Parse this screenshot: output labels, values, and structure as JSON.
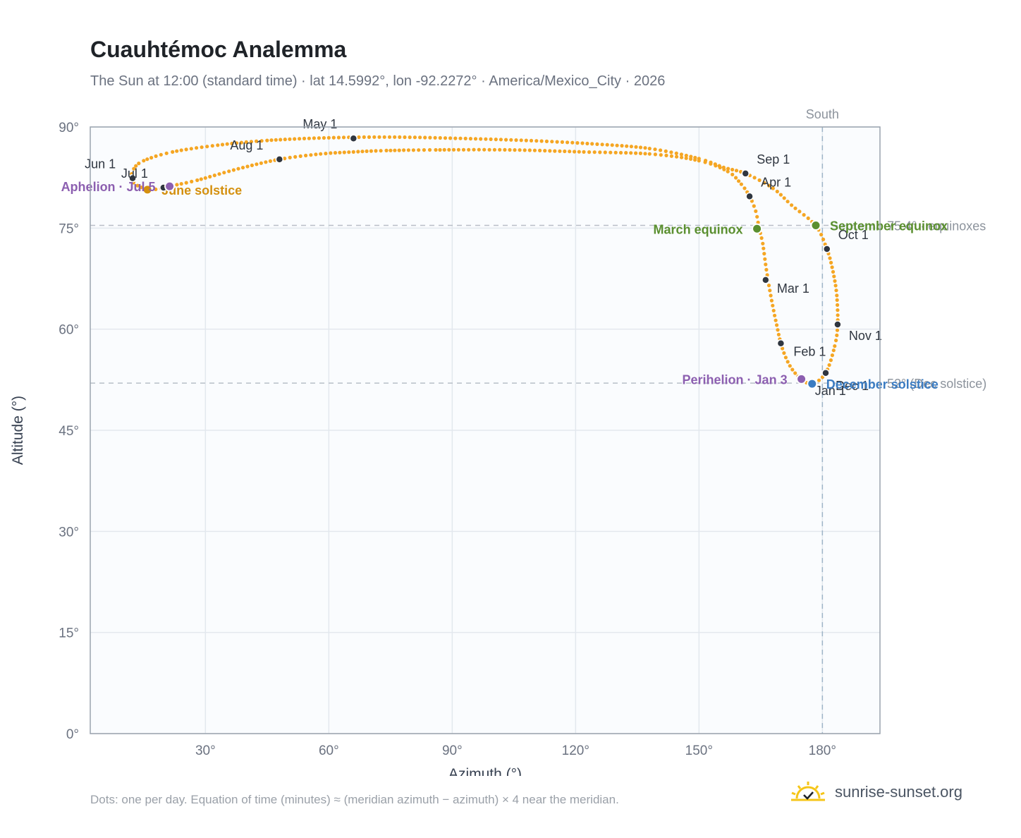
{
  "page": {
    "title": "Cuauhtémoc Analemma",
    "subtitle": "The Sun at 12:00 (standard time) · lat 14.5992°, lon -92.2272° · America/Mexico_City · 2026",
    "footnote": "Dots: one per day. Equation of time (minutes) ≈ (meridian azimuth − azimuth) × 4 near the meridian.",
    "brand": "sunrise-sunset.org"
  },
  "chart_data": {
    "type": "scatter",
    "xlabel": "Azimuth (°)",
    "ylabel": "Altitude (°)",
    "xlim": [
      2,
      194
    ],
    "ylim": [
      0,
      90
    ],
    "xticks": [
      30,
      60,
      90,
      120,
      150,
      180
    ],
    "xtick_labels": [
      "30°",
      "60°",
      "90°",
      "120°",
      "150°",
      "180°"
    ],
    "yticks": [
      0,
      15,
      30,
      45,
      60,
      75,
      90
    ],
    "ytick_labels": [
      "0°",
      "15°",
      "30°",
      "45°",
      "60°",
      "75°",
      "90°"
    ],
    "grid": true,
    "colors": {
      "track": "#f5a623",
      "month": "#2f3640",
      "equinox": "#5a8f2f",
      "december_solstice": "#3b7cc2",
      "june_solstice": "#d4900f",
      "apsis": "#8c5fb0",
      "reference": "#b8bec7",
      "south": "#9fb5c8"
    },
    "track_label": "Analemma",
    "track_points": [
      [
        177.5,
        51.9
      ],
      [
        174.9,
        52.6
      ],
      [
        172.7,
        54.0
      ],
      [
        171.1,
        55.8
      ],
      [
        169.9,
        57.9
      ],
      [
        168.9,
        60.6
      ],
      [
        167.9,
        63.5
      ],
      [
        167.0,
        66.5
      ],
      [
        166.2,
        69.6
      ],
      [
        165.5,
        72.7
      ],
      [
        164.6,
        75.0
      ],
      [
        163.8,
        77.5
      ],
      [
        162.3,
        79.7
      ],
      [
        160.3,
        81.5
      ],
      [
        157.0,
        83.4
      ],
      [
        150.0,
        85.0
      ],
      [
        138.0,
        86.0
      ],
      [
        122.0,
        86.3
      ],
      [
        104.0,
        86.6
      ],
      [
        86.0,
        86.6
      ],
      [
        74.0,
        86.5
      ],
      [
        66.0,
        86.3
      ],
      [
        58.0,
        86.0
      ],
      [
        48.0,
        85.2
      ],
      [
        38.0,
        83.8
      ],
      [
        28.0,
        82.1
      ],
      [
        21.3,
        81.2
      ],
      [
        19.2,
        80.9
      ],
      [
        16.5,
        80.7
      ],
      [
        13.5,
        81.3
      ],
      [
        12.0,
        82.3
      ],
      [
        12.6,
        83.8
      ],
      [
        15.0,
        85.0
      ],
      [
        22.0,
        86.3
      ],
      [
        33.0,
        87.3
      ],
      [
        45.0,
        88.0
      ],
      [
        60.0,
        88.4
      ],
      [
        76.0,
        88.5
      ],
      [
        92.0,
        88.3
      ],
      [
        108.0,
        88.0
      ],
      [
        124.0,
        87.5
      ],
      [
        138.0,
        86.8
      ],
      [
        150.0,
        85.3
      ],
      [
        156.0,
        84.0
      ],
      [
        161.3,
        83.1
      ],
      [
        168.0,
        80.9
      ],
      [
        172.5,
        78.4
      ],
      [
        178.3,
        75.4
      ],
      [
        181.1,
        71.9
      ],
      [
        182.6,
        68.5
      ],
      [
        183.5,
        65.0
      ],
      [
        183.7,
        60.7
      ],
      [
        183.0,
        57.5
      ],
      [
        180.8,
        53.5
      ],
      [
        177.5,
        51.9
      ]
    ],
    "months": [
      {
        "label": "Jan 1",
        "az": 177.5,
        "alt": 51.9,
        "dx": 4,
        "dy": 16
      },
      {
        "label": "Feb 1",
        "az": 169.9,
        "alt": 57.9,
        "dx": 18,
        "dy": 18
      },
      {
        "label": "Mar 1",
        "az": 166.2,
        "alt": 67.3,
        "dx": 16,
        "dy": 18
      },
      {
        "label": "Apr 1",
        "az": 162.3,
        "alt": 79.7,
        "dx": 16,
        "dy": -14
      },
      {
        "label": "May 1",
        "az": 66.0,
        "alt": 88.3,
        "dx": -72,
        "dy": -14
      },
      {
        "label": "Jun 1",
        "az": 12.3,
        "alt": 82.4,
        "dx": -68,
        "dy": -14
      },
      {
        "label": "Jul 1",
        "az": 19.8,
        "alt": 81.0,
        "dx": -60,
        "dy": -14
      },
      {
        "label": "Aug 1",
        "az": 48.0,
        "alt": 85.2,
        "dx": -70,
        "dy": -14
      },
      {
        "label": "Sep 1",
        "az": 161.3,
        "alt": 83.1,
        "dx": 16,
        "dy": -14
      },
      {
        "label": "Oct 1",
        "az": 181.1,
        "alt": 71.9,
        "dx": 16,
        "dy": -14
      },
      {
        "label": "Nov 1",
        "az": 183.7,
        "alt": 60.7,
        "dx": 16,
        "dy": 22
      },
      {
        "label": "Dec 1",
        "az": 180.8,
        "alt": 53.5,
        "dx": 14,
        "dy": 24
      }
    ],
    "events": [
      {
        "label": "March equinox",
        "az": 164.1,
        "alt": 74.9,
        "color": "#5a8f2f",
        "side": "left"
      },
      {
        "label": "September equinox",
        "az": 178.4,
        "alt": 75.4,
        "color": "#5a8f2f",
        "side": "right"
      },
      {
        "label": "December solstice",
        "az": 177.5,
        "alt": 51.9,
        "color": "#3b7cc2",
        "side": "right"
      },
      {
        "label": "June solstice",
        "az": 15.9,
        "alt": 80.7,
        "color": "#d4900f",
        "side": "right"
      },
      {
        "label": "Perihelion · Jan 3",
        "az": 174.9,
        "alt": 52.6,
        "color": "#8c5fb0",
        "side": "left"
      },
      {
        "label": "Aphelion · Jul 5",
        "az": 21.3,
        "alt": 81.2,
        "color": "#8c5fb0",
        "side": "left"
      }
    ],
    "reference_lines": [
      {
        "type": "horizontal",
        "value": 75.4,
        "label": "75.4° · equinoxes"
      },
      {
        "type": "horizontal",
        "value": 52.0,
        "label": "52° (Dec solstice)"
      },
      {
        "type": "vertical",
        "value": 180,
        "label": "South"
      }
    ]
  }
}
